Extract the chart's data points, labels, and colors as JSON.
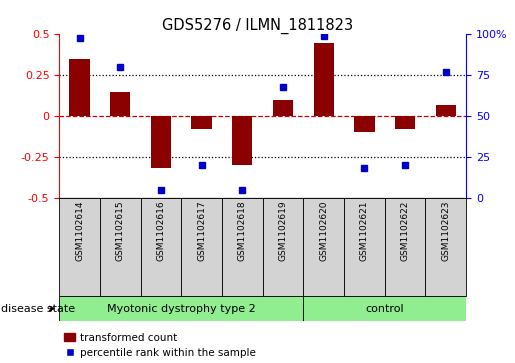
{
  "title": "GDS5276 / ILMN_1811823",
  "samples": [
    "GSM1102614",
    "GSM1102615",
    "GSM1102616",
    "GSM1102617",
    "GSM1102618",
    "GSM1102619",
    "GSM1102620",
    "GSM1102621",
    "GSM1102622",
    "GSM1102623"
  ],
  "transformed_count": [
    0.35,
    0.15,
    -0.32,
    -0.08,
    -0.3,
    0.1,
    0.45,
    -0.1,
    -0.08,
    0.07
  ],
  "percentile_rank": [
    98,
    80,
    5,
    20,
    5,
    68,
    99,
    18,
    20,
    77
  ],
  "groups": [
    {
      "label": "Myotonic dystrophy type 2",
      "start": 0,
      "end": 6,
      "color": "#90EE90"
    },
    {
      "label": "control",
      "start": 6,
      "end": 10,
      "color": "#90EE90"
    }
  ],
  "bar_color": "#8B0000",
  "scatter_color": "#0000CD",
  "ylim_left": [
    -0.5,
    0.5
  ],
  "ylim_right": [
    0,
    100
  ],
  "yticks_left": [
    -0.5,
    -0.25,
    0.0,
    0.25,
    0.5
  ],
  "yticks_right": [
    0,
    25,
    50,
    75,
    100
  ],
  "ytick_labels_right": [
    "0",
    "25",
    "50",
    "75",
    "100%"
  ],
  "ytick_labels_left": [
    "-0.5",
    "-0.25",
    "0",
    "0.25",
    "0.5"
  ],
  "hline_color": "#CC0000",
  "dotted_color": "black",
  "disease_state_label": "disease state",
  "legend_bar_label": "transformed count",
  "legend_scatter_label": "percentile rank within the sample",
  "background_color": "#ffffff",
  "tick_box_color": "#d3d3d3",
  "n_disease": 6,
  "n_control": 4
}
